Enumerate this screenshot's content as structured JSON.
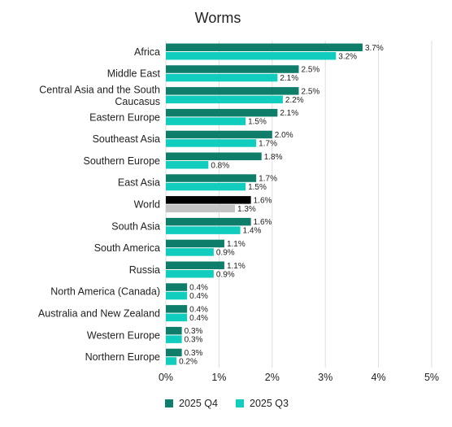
{
  "chart_data": {
    "type": "bar",
    "orientation": "horizontal",
    "title": "Worms",
    "categories": [
      "Africa",
      "Middle East",
      "Central Asia and the South Caucasus",
      "Eastern Europe",
      "Southeast Asia",
      "Southern Europe",
      "East Asia",
      "World",
      "South Asia",
      "South America",
      "Russia",
      "North America (Canada)",
      "Australia and New Zealand",
      "Western Europe",
      "Northern Europe"
    ],
    "category_lines": [
      [
        "Africa"
      ],
      [
        "Middle East"
      ],
      [
        "Central Asia and the South",
        "Caucasus"
      ],
      [
        "Eastern Europe"
      ],
      [
        "Southeast Asia"
      ],
      [
        "Southern Europe"
      ],
      [
        "East Asia"
      ],
      [
        "World"
      ],
      [
        "South Asia"
      ],
      [
        "South America"
      ],
      [
        "Russia"
      ],
      [
        "North America (Canada)"
      ],
      [
        "Australia and New Zealand"
      ],
      [
        "Western Europe"
      ],
      [
        "Northern Europe"
      ]
    ],
    "series": [
      {
        "name": "2025 Q4",
        "color": "#0e7e6b",
        "values": [
          3.7,
          2.5,
          2.5,
          2.1,
          2.0,
          1.8,
          1.7,
          1.6,
          1.6,
          1.1,
          1.1,
          0.4,
          0.4,
          0.3,
          0.3
        ],
        "labels": [
          "3.7%",
          "2.5%",
          "2.5%",
          "2.1%",
          "2.0%",
          "1.8%",
          "1.7%",
          "1.6%",
          "1.6%",
          "1.1%",
          "1.1%",
          "0.4%",
          "0.4%",
          "0.3%",
          "0.3%"
        ]
      },
      {
        "name": "2025 Q3",
        "color": "#11cdbd",
        "values": [
          3.2,
          2.1,
          2.2,
          1.5,
          1.7,
          0.8,
          1.5,
          1.3,
          1.4,
          0.9,
          0.9,
          0.4,
          0.4,
          0.3,
          0.2
        ],
        "labels": [
          "3.2%",
          "2.1%",
          "2.2%",
          "1.5%",
          "1.7%",
          "0.8%",
          "1.5%",
          "1.3%",
          "1.4%",
          "0.9%",
          "0.9%",
          "0.4%",
          "0.4%",
          "0.3%",
          "0.2%"
        ]
      }
    ],
    "highlight": {
      "category": "World",
      "colors": [
        "#000000",
        "#c4c4c4"
      ]
    },
    "xlim": [
      0,
      5
    ],
    "xticks": [
      0,
      1,
      2,
      3,
      4,
      5
    ],
    "xtick_labels": [
      "0%",
      "1%",
      "2%",
      "3%",
      "4%",
      "5%"
    ],
    "grid": "vertical",
    "legend": "bottom"
  }
}
